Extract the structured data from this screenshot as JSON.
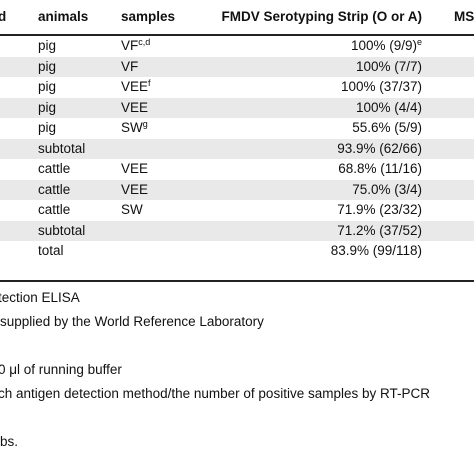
{
  "table": {
    "columns": [
      "d",
      "animals",
      "samples",
      "FMDV Serotyping Strip (O or A)",
      "MS"
    ],
    "rows": [
      {
        "animals": "pig",
        "samples": "VF",
        "sup": "c,d",
        "strip": "100% (9/9)",
        "strip_sup": "e",
        "shaded": false
      },
      {
        "animals": "pig",
        "samples": "VF",
        "sup": "",
        "strip": "100% (7/7)",
        "strip_sup": "",
        "shaded": true
      },
      {
        "animals": "pig",
        "samples": "VEE",
        "sup": "f",
        "strip": "100% (37/37)",
        "strip_sup": "",
        "shaded": false
      },
      {
        "animals": "pig",
        "samples": "VEE",
        "sup": "",
        "strip": "100% (4/4)",
        "strip_sup": "",
        "shaded": true
      },
      {
        "animals": "pig",
        "samples": "SW",
        "sup": "g",
        "strip": "55.6% (5/9)",
        "strip_sup": "",
        "shaded": false
      },
      {
        "animals": "subtotal",
        "samples": "",
        "sup": "",
        "strip": "93.9% (62/66)",
        "strip_sup": "",
        "shaded": true
      },
      {
        "animals": "cattle",
        "samples": "VEE",
        "sup": "",
        "strip": "68.8% (11/16)",
        "strip_sup": "",
        "shaded": false
      },
      {
        "animals": "cattle",
        "samples": "VEE",
        "sup": "",
        "strip": "75.0% (3/4)",
        "strip_sup": "",
        "shaded": true
      },
      {
        "animals": "cattle",
        "samples": "SW",
        "sup": "",
        "strip": "71.9% (23/32)",
        "strip_sup": "",
        "shaded": false
      },
      {
        "animals": "subtotal",
        "samples": "",
        "sup": "",
        "strip": "71.2% (37/52)",
        "strip_sup": "",
        "shaded": true
      },
      {
        "animals": "total",
        "samples": "",
        "sup": "",
        "strip": "83.9% (99/118)",
        "strip_sup": "",
        "shaded": false
      }
    ]
  },
  "notes": [
    "tection ELISA",
    "supplied by the World Reference Laboratory",
    "0 μl of running buffer",
    "ch antigen detection method/the number of positive samples by RT-PCR",
    "bs."
  ],
  "colors": {
    "shade": "#e9e9e9",
    "rule": "#222222",
    "text": "#111111"
  }
}
